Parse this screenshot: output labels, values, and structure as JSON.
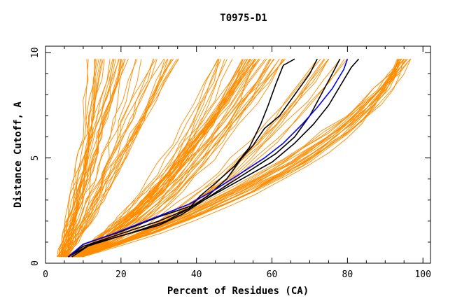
{
  "chart_data": {
    "type": "line",
    "title": "T0975-D1",
    "xlabel": "Percent of Residues (CA)",
    "ylabel": "Distance Cutoff, A",
    "xlim": [
      0,
      102
    ],
    "ylim": [
      0,
      10
    ],
    "xticks": [
      0,
      20,
      40,
      60,
      80,
      100
    ],
    "yticks": [
      0,
      5,
      10
    ],
    "grid": false,
    "colors": {
      "orange": "#ff8c00",
      "black": "#000000",
      "blue": "#0000ff"
    },
    "orange_bands": [
      {
        "start": [
          4,
          0.3
        ],
        "knee": [
          9,
          2.5
        ],
        "end": [
          16,
          9.7
        ],
        "count": 24,
        "spread_x": 3.5,
        "end_spread_x": 6
      },
      {
        "start": [
          5,
          0.3
        ],
        "knee": [
          12,
          2.5
        ],
        "end": [
          29,
          9.7
        ],
        "count": 18,
        "spread_x": 4,
        "end_spread_x": 8
      },
      {
        "start": [
          6,
          0.3
        ],
        "knee": [
          28,
          2.0
        ],
        "end": [
          52,
          9.7
        ],
        "count": 20,
        "spread_x": 5,
        "end_spread_x": 7
      },
      {
        "start": [
          7,
          0.3
        ],
        "knee": [
          32,
          1.8
        ],
        "end": [
          58,
          9.7
        ],
        "count": 22,
        "spread_x": 6,
        "end_spread_x": 6
      },
      {
        "start": [
          8,
          0.3
        ],
        "knee": [
          45,
          2.0
        ],
        "end": [
          76,
          9.7
        ],
        "count": 10,
        "spread_x": 6,
        "end_spread_x": 4
      },
      {
        "start": [
          9,
          0.3
        ],
        "knee": [
          80,
          4.5
        ],
        "end": [
          95,
          9.7
        ],
        "count": 22,
        "spread_x": 8,
        "end_spread_x": 2
      }
    ],
    "series": [
      {
        "color": "black",
        "points": [
          [
            6,
            0.3
          ],
          [
            10,
            0.8
          ],
          [
            20,
            1.4
          ],
          [
            30,
            2.0
          ],
          [
            38,
            2.6
          ],
          [
            43,
            3.2
          ],
          [
            48,
            4.0
          ],
          [
            52,
            5.0
          ],
          [
            55,
            5.6
          ],
          [
            58,
            6.4
          ],
          [
            62,
            7.0
          ],
          [
            66,
            8.0
          ],
          [
            70,
            9.0
          ],
          [
            72,
            9.7
          ]
        ]
      },
      {
        "color": "black",
        "points": [
          [
            7,
            0.3
          ],
          [
            12,
            0.9
          ],
          [
            22,
            1.4
          ],
          [
            32,
            2.0
          ],
          [
            38,
            2.6
          ],
          [
            41,
            3.2
          ],
          [
            45,
            3.8
          ],
          [
            50,
            4.6
          ],
          [
            54,
            5.5
          ],
          [
            57,
            6.6
          ],
          [
            59,
            7.5
          ],
          [
            61,
            8.5
          ],
          [
            63,
            9.4
          ],
          [
            66,
            9.7
          ]
        ]
      },
      {
        "color": "black",
        "points": [
          [
            6,
            0.3
          ],
          [
            11,
            0.8
          ],
          [
            20,
            1.3
          ],
          [
            30,
            1.8
          ],
          [
            36,
            2.3
          ],
          [
            42,
            3.0
          ],
          [
            48,
            3.7
          ],
          [
            55,
            4.5
          ],
          [
            61,
            5.2
          ],
          [
            66,
            6.0
          ],
          [
            70,
            7.0
          ],
          [
            73,
            8.0
          ],
          [
            76,
            9.0
          ],
          [
            78,
            9.7
          ]
        ]
      },
      {
        "color": "black",
        "points": [
          [
            6,
            0.3
          ],
          [
            10,
            0.9
          ],
          [
            20,
            1.5
          ],
          [
            30,
            2.2
          ],
          [
            40,
            2.8
          ],
          [
            47,
            3.5
          ],
          [
            54,
            4.2
          ],
          [
            60,
            4.8
          ],
          [
            66,
            5.7
          ],
          [
            71,
            6.6
          ],
          [
            75,
            7.5
          ],
          [
            78,
            8.4
          ],
          [
            81,
            9.3
          ],
          [
            83,
            9.7
          ]
        ]
      },
      {
        "color": "blue",
        "points": [
          [
            6,
            0.3
          ],
          [
            10,
            0.9
          ],
          [
            18,
            1.4
          ],
          [
            28,
            2.1
          ],
          [
            38,
            2.8
          ],
          [
            45,
            3.5
          ],
          [
            52,
            4.3
          ],
          [
            58,
            5.0
          ],
          [
            63,
            5.7
          ],
          [
            68,
            6.6
          ],
          [
            72,
            7.4
          ],
          [
            76,
            8.3
          ],
          [
            79,
            9.2
          ],
          [
            80,
            9.7
          ]
        ]
      }
    ]
  }
}
